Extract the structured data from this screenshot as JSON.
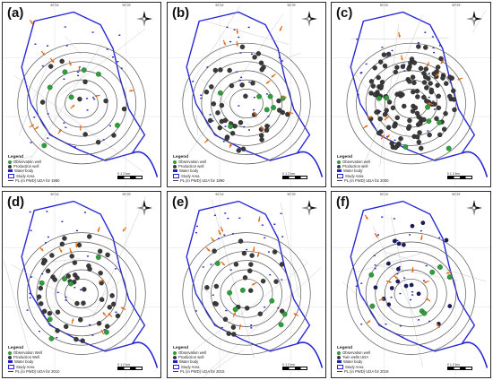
{
  "panels": [
    {
      "label": "(a)",
      "legend": {
        "title": "Legend",
        "items": [
          "Observation well",
          "Production well",
          "Water body",
          "Study Area",
          "PL (in PWD) UDA for 1980"
        ]
      },
      "scale": "0  1  2 km"
    },
    {
      "label": "(b)",
      "legend": {
        "title": "Legend",
        "items": [
          "Observation well",
          "Production well",
          "Water body",
          "Study Area",
          "PL (in PWD) UDA for 1990"
        ]
      },
      "scale": "0  1  2 km"
    },
    {
      "label": "(c)",
      "legend": {
        "title": "Legend",
        "items": [
          "Observation well",
          "Production well",
          "Water body",
          "Study Area",
          "PL (in PWD) UDA for 2000"
        ]
      },
      "scale": "0  1  2 km"
    },
    {
      "label": "(d)",
      "legend": {
        "title": "Legend",
        "items": [
          "Observation Well",
          "Production Well",
          "Water body",
          "Study Area",
          "PL (in PWD) UDA for 2010"
        ]
      },
      "scale": "0  1  2 km"
    },
    {
      "label": "(e)",
      "legend": {
        "title": "Legend",
        "items": [
          "Observation well",
          "Production well",
          "Water body",
          "Study Area",
          "PL (in PWD) UDA for 2015"
        ]
      },
      "scale": "0  1  2 km"
    },
    {
      "label": "(f)",
      "legend": {
        "title": "Legend",
        "items": [
          "Observation well",
          "Twin wells UDA",
          "Water body",
          "Study Area",
          "PL (in PWD) UDA for 2019"
        ]
      },
      "scale": "0  1  2 km"
    }
  ],
  "coords": {
    "top_left": "90°24'",
    "top_right": "90°29'",
    "left_top": "23°52'",
    "left_bottom": "23°45'"
  },
  "colors": {
    "observation_well": "#2e9e3a",
    "production_well": "#3a3a3a",
    "water_body": "#2020c0",
    "river": "#2727d6",
    "arrow": "#e86a12",
    "contour": "#555555"
  }
}
